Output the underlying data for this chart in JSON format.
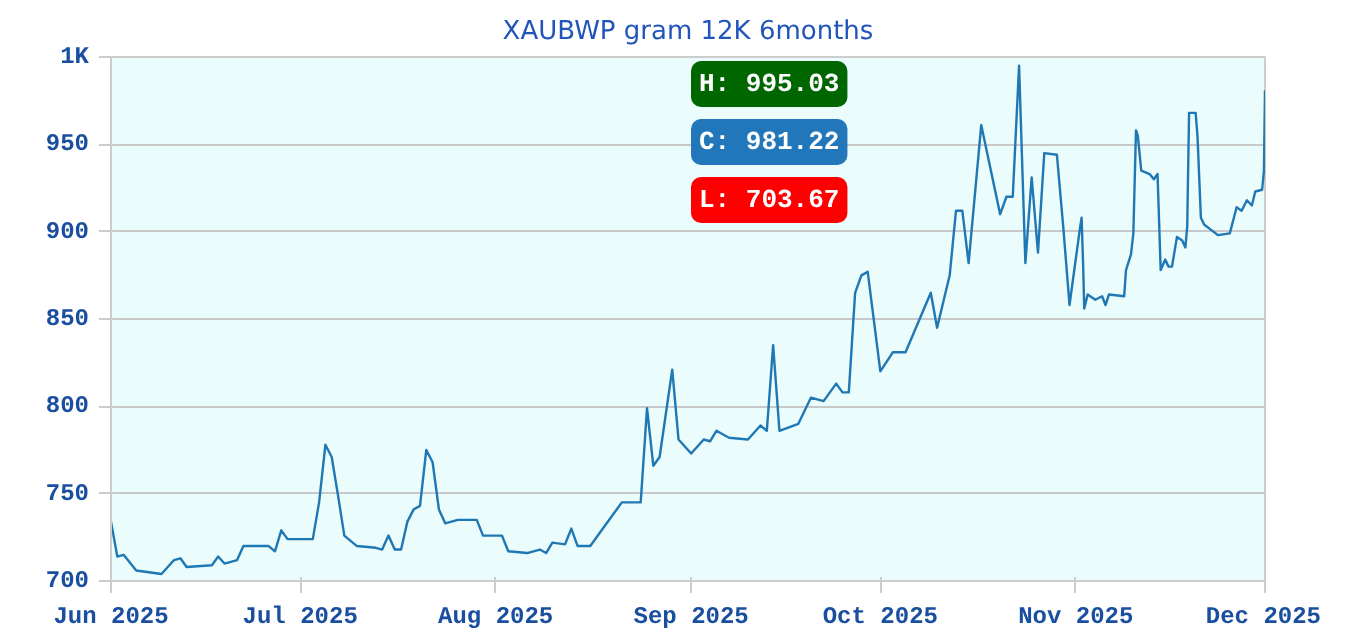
{
  "chart_data": {
    "type": "line",
    "title": "XAUBWP gram 12K 6months",
    "x": [
      "2025-06-01",
      "2025-06-02",
      "2025-06-03",
      "2025-06-05",
      "2025-06-09",
      "2025-06-11",
      "2025-06-12",
      "2025-06-13",
      "2025-06-17",
      "2025-06-18",
      "2025-06-19",
      "2025-06-21",
      "2025-06-22",
      "2025-06-26",
      "2025-06-27",
      "2025-06-28",
      "2025-06-29",
      "2025-07-03",
      "2025-07-04",
      "2025-07-05",
      "2025-07-06",
      "2025-07-07",
      "2025-07-08",
      "2025-07-10",
      "2025-07-13",
      "2025-07-14",
      "2025-07-15",
      "2025-07-16",
      "2025-07-17",
      "2025-07-18",
      "2025-07-19",
      "2025-07-20",
      "2025-07-21",
      "2025-07-22",
      "2025-07-23",
      "2025-07-24",
      "2025-07-26",
      "2025-07-29",
      "2025-07-30",
      "2025-08-02",
      "2025-08-03",
      "2025-08-06",
      "2025-08-08",
      "2025-08-09",
      "2025-08-10",
      "2025-08-12",
      "2025-08-13",
      "2025-08-14",
      "2025-08-16",
      "2025-08-21",
      "2025-08-24",
      "2025-08-25",
      "2025-08-26",
      "2025-08-27",
      "2025-08-29",
      "2025-08-30",
      "2025-09-01",
      "2025-09-03",
      "2025-09-04",
      "2025-09-05",
      "2025-09-07",
      "2025-09-10",
      "2025-09-12",
      "2025-09-13",
      "2025-09-14",
      "2025-09-15",
      "2025-09-18",
      "2025-09-20",
      "2025-09-22",
      "2025-09-24",
      "2025-09-25",
      "2025-09-26",
      "2025-09-27",
      "2025-09-28",
      "2025-09-29",
      "2025-10-01",
      "2025-10-03",
      "2025-10-05",
      "2025-10-09",
      "2025-10-10",
      "2025-10-12",
      "2025-10-13",
      "2025-10-14",
      "2025-10-15",
      "2025-10-17",
      "2025-10-20",
      "2025-10-21",
      "2025-10-22",
      "2025-10-23",
      "2025-10-24",
      "2025-10-25",
      "2025-10-26",
      "2025-10-27",
      "2025-10-29",
      "2025-10-30",
      "2025-10-31",
      "2025-11-01T15:00",
      "2025-11-01T22:00",
      "2025-11-02T04:00",
      "2025-11-02T08:00",
      "2025-11-02T21:00",
      "2025-11-04T02:00",
      "2025-11-05T04:00",
      "2025-11-05T17:00",
      "2025-11-06T06:00",
      "2025-11-08T16:00",
      "2025-11-08T23:00",
      "2025-11-09T18:00",
      "2025-11-10T03:00",
      "2025-11-10T13:00",
      "2025-11-10T20:00",
      "2025-11-11T09:00",
      "2025-11-12T17:00",
      "2025-11-13T09:00",
      "2025-11-13T23:00",
      "2025-11-14T11:00",
      "2025-11-15T04:00",
      "2025-11-15T17:00",
      "2025-11-16T06:00",
      "2025-11-17T01:00",
      "2025-11-17T21:00",
      "2025-11-18T09:00",
      "2025-11-18T16:00",
      "2025-11-18T23:00",
      "2025-11-20T00:00",
      "2025-11-20T07:00",
      "2025-11-20T20:00",
      "2025-11-21T09:00",
      "2025-11-22T11:00",
      "2025-11-23T13:00",
      "2025-11-25T10:00",
      "2025-11-26T12:00",
      "2025-11-27T07:00",
      "2025-11-28T03:00",
      "2025-11-28T22:00",
      "2025-11-29T11:00",
      "2025-11-30T13:00",
      "2025-11-30T20:00",
      "2025-12-01T00:00"
    ],
    "series": [
      {
        "color": "#1f77b4",
        "values": [
          734,
          714,
          715,
          706,
          704,
          712,
          713,
          708,
          709,
          714,
          710,
          712,
          720,
          720,
          717,
          729,
          724,
          724,
          745,
          778,
          771,
          749,
          726,
          720,
          719,
          718,
          726,
          718,
          718,
          734,
          741,
          743,
          775,
          768,
          741,
          733,
          735,
          735,
          726,
          726,
          717,
          716,
          718,
          716,
          722,
          721,
          730,
          720,
          720,
          745,
          745,
          799,
          766,
          771,
          821,
          781,
          773,
          781,
          780,
          786,
          782,
          781,
          789,
          786,
          835,
          786,
          790,
          805,
          803,
          813,
          808,
          808,
          865,
          875,
          877,
          820,
          831,
          831,
          865,
          845,
          875,
          912,
          912,
          882,
          961,
          910,
          920,
          920,
          995,
          882,
          931,
          888,
          945,
          944,
          903,
          858,
          901,
          908,
          880,
          856,
          864,
          861,
          863,
          858,
          864,
          863,
          878,
          887,
          899,
          958,
          955,
          935,
          933,
          930,
          933,
          878,
          884,
          880,
          880,
          897,
          895,
          891,
          903,
          968,
          968,
          955,
          908,
          904,
          901,
          898,
          899,
          914,
          912,
          918,
          915,
          923,
          924,
          935,
          981
        ]
      }
    ],
    "xlim": [
      "2025-06-01",
      "2025-12-01"
    ],
    "xticks": [
      {
        "value": "2025-06-01",
        "label": "Jun 2025"
      },
      {
        "value": "2025-07-01",
        "label": "Jul 2025"
      },
      {
        "value": "2025-08-01",
        "label": "Aug 2025"
      },
      {
        "value": "2025-09-01",
        "label": "Sep 2025"
      },
      {
        "value": "2025-10-01",
        "label": "Oct 2025"
      },
      {
        "value": "2025-11-01",
        "label": "Nov 2025"
      },
      {
        "value": "2025-12-01",
        "label": "Dec 2025"
      }
    ],
    "ylim": [
      700,
      1000
    ],
    "yticks": [
      700,
      750,
      800,
      850,
      900,
      950,
      {
        "value": 1000,
        "label": "1K"
      }
    ],
    "grid": "y",
    "annotations": [
      "H: 995.03",
      "C: 981.22",
      "L: 703.67"
    ]
  }
}
